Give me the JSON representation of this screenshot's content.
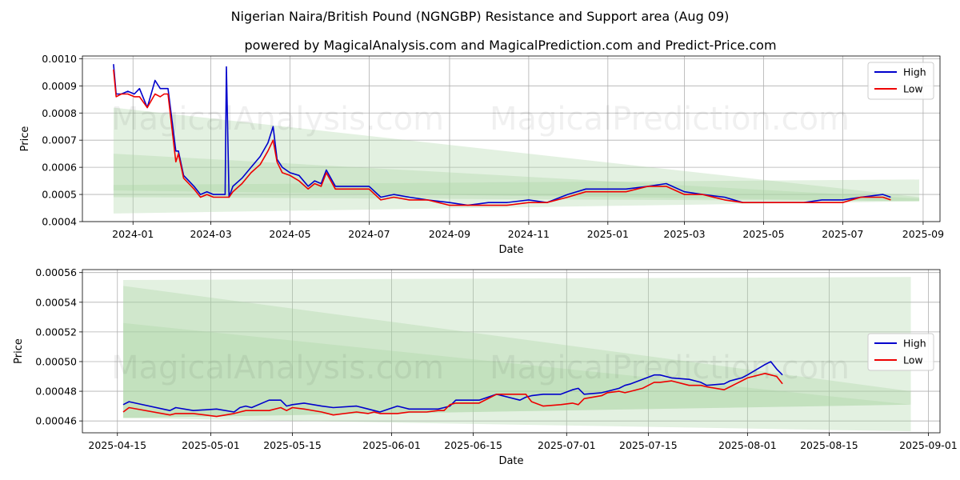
{
  "title": "Nigerian Naira/British Pound (NGNGBP) Resistance and Support area (Aug 09)",
  "subtitle": "powered by MagicalAnalysis.com and MagicalPrediction.com and Predict-Price.com",
  "watermarks": [
    "MagicalAnalysis.com",
    "MagicalPrediction.com"
  ],
  "colors": {
    "high": "#0000cc",
    "low": "#ee0000",
    "band_fill": "#a8d5a2",
    "grid": "#b0b0b0"
  },
  "chart_data": [
    {
      "type": "line",
      "xlabel": "Date",
      "ylabel": "Price",
      "xlim": [
        "2023-11-23",
        "2025-09-14"
      ],
      "ylim": [
        0.0004,
        0.00101
      ],
      "yticks": [
        0.0004,
        0.0005,
        0.0006,
        0.0007,
        0.0008,
        0.0009,
        0.001
      ],
      "ytick_labels": [
        "0.0004",
        "0.0005",
        "0.0006",
        "0.0007",
        "0.0008",
        "0.0009",
        "0.0010"
      ],
      "xticks": [
        "2024-01-01",
        "2024-03-01",
        "2024-05-01",
        "2024-07-01",
        "2024-09-01",
        "2024-11-01",
        "2025-01-01",
        "2025-03-01",
        "2025-05-01",
        "2025-07-01",
        "2025-09-01"
      ],
      "xtick_labels": [
        "2024-01",
        "2024-03",
        "2024-05",
        "2024-07",
        "2024-09",
        "2024-11",
        "2025-01",
        "2025-03",
        "2025-05",
        "2025-07",
        "2025-09"
      ],
      "grid": true,
      "legend": "top-right",
      "bands": [
        {
          "x": [
            "2023-12-17",
            "2025-08-29"
          ],
          "upper": [
            0.00082,
            0.00049
          ],
          "lower": [
            0.00043,
            0.000475
          ]
        },
        {
          "x": [
            "2023-12-17",
            "2025-08-29"
          ],
          "upper": [
            0.00065,
            0.000485
          ],
          "lower": [
            0.00049,
            0.000475
          ]
        },
        {
          "x": [
            "2023-12-17",
            "2025-08-29"
          ],
          "upper": [
            0.000535,
            0.000555
          ],
          "lower": [
            0.000515,
            0.000475
          ]
        }
      ],
      "series": [
        {
          "name": "High",
          "x": [
            "2023-12-17",
            "2023-12-19",
            "2023-12-23",
            "2023-12-28",
            "2024-01-02",
            "2024-01-06",
            "2024-01-12",
            "2024-01-18",
            "2024-01-22",
            "2024-01-25",
            "2024-01-28",
            "2024-02-03",
            "2024-02-05",
            "2024-02-09",
            "2024-02-13",
            "2024-02-17",
            "2024-02-22",
            "2024-02-27",
            "2024-03-03",
            "2024-03-08",
            "2024-03-12",
            "2024-03-13",
            "2024-03-15",
            "2024-03-18",
            "2024-03-25",
            "2024-04-01",
            "2024-04-08",
            "2024-04-14",
            "2024-04-18",
            "2024-04-21",
            "2024-04-25",
            "2024-05-01",
            "2024-05-08",
            "2024-05-15",
            "2024-05-20",
            "2024-05-25",
            "2024-05-29",
            "2024-06-05",
            "2024-06-15",
            "2024-06-25",
            "2024-07-01",
            "2024-07-10",
            "2024-07-20",
            "2024-08-01",
            "2024-08-15",
            "2024-09-01",
            "2024-09-15",
            "2024-10-01",
            "2024-10-15",
            "2024-11-01",
            "2024-11-15",
            "2024-12-01",
            "2024-12-15",
            "2025-01-01",
            "2025-01-15",
            "2025-02-01",
            "2025-02-15",
            "2025-03-01",
            "2025-03-15",
            "2025-04-01",
            "2025-04-15",
            "2025-05-01",
            "2025-05-15",
            "2025-06-01",
            "2025-06-15",
            "2025-07-01",
            "2025-07-15",
            "2025-08-01",
            "2025-08-07"
          ],
          "values": [
            0.00098,
            0.00087,
            0.00087,
            0.00088,
            0.00087,
            0.00089,
            0.00082,
            0.00092,
            0.00089,
            0.00089,
            0.00089,
            0.00066,
            0.00066,
            0.00057,
            0.00055,
            0.00053,
            0.0005,
            0.00051,
            0.0005,
            0.0005,
            0.0005,
            0.00097,
            0.00049,
            0.00053,
            0.00056,
            0.0006,
            0.00064,
            0.00069,
            0.00075,
            0.00063,
            0.0006,
            0.00058,
            0.00057,
            0.00053,
            0.00055,
            0.00054,
            0.00059,
            0.00053,
            0.00053,
            0.00053,
            0.00053,
            0.00049,
            0.0005,
            0.00049,
            0.00048,
            0.00047,
            0.00046,
            0.00047,
            0.00047,
            0.00048,
            0.00047,
            0.0005,
            0.00052,
            0.00052,
            0.00052,
            0.00053,
            0.00054,
            0.00051,
            0.0005,
            0.00049,
            0.00047,
            0.00047,
            0.00047,
            0.00047,
            0.00048,
            0.00048,
            0.00049,
            0.0005,
            0.00049
          ]
        },
        {
          "name": "Low",
          "x": [
            "2023-12-17",
            "2023-12-19",
            "2023-12-23",
            "2023-12-28",
            "2024-01-02",
            "2024-01-06",
            "2024-01-12",
            "2024-01-18",
            "2024-01-22",
            "2024-01-25",
            "2024-01-28",
            "2024-02-03",
            "2024-02-05",
            "2024-02-09",
            "2024-02-13",
            "2024-02-17",
            "2024-02-22",
            "2024-02-27",
            "2024-03-03",
            "2024-03-08",
            "2024-03-12",
            "2024-03-13",
            "2024-03-15",
            "2024-03-18",
            "2024-03-25",
            "2024-04-01",
            "2024-04-08",
            "2024-04-14",
            "2024-04-18",
            "2024-04-21",
            "2024-04-25",
            "2024-05-01",
            "2024-05-08",
            "2024-05-15",
            "2024-05-20",
            "2024-05-25",
            "2024-05-29",
            "2024-06-05",
            "2024-06-15",
            "2024-06-25",
            "2024-07-01",
            "2024-07-10",
            "2024-07-20",
            "2024-08-01",
            "2024-08-15",
            "2024-09-01",
            "2024-09-15",
            "2024-10-01",
            "2024-10-15",
            "2024-11-01",
            "2024-11-15",
            "2024-12-01",
            "2024-12-15",
            "2025-01-01",
            "2025-01-15",
            "2025-02-01",
            "2025-02-15",
            "2025-03-01",
            "2025-03-15",
            "2025-04-01",
            "2025-04-15",
            "2025-05-01",
            "2025-05-15",
            "2025-06-01",
            "2025-06-15",
            "2025-07-01",
            "2025-07-15",
            "2025-08-01",
            "2025-08-07"
          ],
          "values": [
            0.00096,
            0.00086,
            0.00087,
            0.00087,
            0.00086,
            0.00086,
            0.00082,
            0.00087,
            0.00086,
            0.00087,
            0.00087,
            0.00062,
            0.00065,
            0.00056,
            0.00054,
            0.00052,
            0.00049,
            0.0005,
            0.00049,
            0.00049,
            0.00049,
            0.00049,
            0.00049,
            0.00051,
            0.00054,
            0.00058,
            0.00061,
            0.00066,
            0.0007,
            0.00062,
            0.00058,
            0.00057,
            0.00055,
            0.00052,
            0.00054,
            0.00053,
            0.00058,
            0.00052,
            0.00052,
            0.00052,
            0.00052,
            0.00048,
            0.00049,
            0.00048,
            0.00048,
            0.00046,
            0.00046,
            0.00046,
            0.00046,
            0.00047,
            0.00047,
            0.00049,
            0.00051,
            0.00051,
            0.00051,
            0.00053,
            0.00053,
            0.0005,
            0.0005,
            0.00048,
            0.00047,
            0.00047,
            0.00047,
            0.00047,
            0.00047,
            0.00047,
            0.00049,
            0.00049,
            0.00048
          ]
        }
      ]
    },
    {
      "type": "line",
      "xlabel": "Date",
      "ylabel": "Price",
      "xlim": [
        "2025-04-09",
        "2025-09-03"
      ],
      "ylim": [
        0.000452,
        0.000562
      ],
      "yticks": [
        0.00046,
        0.00048,
        0.0005,
        0.00052,
        0.00054,
        0.00056
      ],
      "ytick_labels": [
        "0.00046",
        "0.00048",
        "0.00050",
        "0.00052",
        "0.00054",
        "0.00056"
      ],
      "xticks": [
        "2025-04-15",
        "2025-05-01",
        "2025-05-15",
        "2025-06-01",
        "2025-06-15",
        "2025-07-01",
        "2025-07-15",
        "2025-08-01",
        "2025-08-15",
        "2025-09-01"
      ],
      "xtick_labels": [
        "2025-04-15",
        "2025-05-01",
        "2025-05-15",
        "2025-06-01",
        "2025-06-15",
        "2025-07-01",
        "2025-07-15",
        "2025-08-01",
        "2025-08-15",
        "2025-09-01"
      ],
      "grid": true,
      "legend": "center-right",
      "bands": [
        {
          "x": [
            "2025-04-16",
            "2025-08-29"
          ],
          "upper": [
            0.000555,
            0.000557
          ],
          "lower": [
            0.000462,
            0.000471
          ]
        },
        {
          "x": [
            "2025-04-16",
            "2025-08-29"
          ],
          "upper": [
            0.000551,
            0.00048
          ],
          "lower": [
            0.000462,
            0.000471
          ]
        },
        {
          "x": [
            "2025-04-16",
            "2025-08-29"
          ],
          "upper": [
            0.000526,
            0.000471
          ],
          "lower": [
            0.000462,
            0.000453
          ]
        }
      ],
      "series": [
        {
          "name": "High",
          "x": [
            "2025-04-16",
            "2025-04-17",
            "2025-04-24",
            "2025-04-25",
            "2025-04-28",
            "2025-05-02",
            "2025-05-05",
            "2025-05-06",
            "2025-05-07",
            "2025-05-08",
            "2025-05-11",
            "2025-05-13",
            "2025-05-14",
            "2025-05-15",
            "2025-05-17",
            "2025-05-20",
            "2025-05-22",
            "2025-05-26",
            "2025-05-28",
            "2025-05-29",
            "2025-05-30",
            "2025-06-02",
            "2025-06-04",
            "2025-06-05",
            "2025-06-07",
            "2025-06-09",
            "2025-06-10",
            "2025-06-11",
            "2025-06-12",
            "2025-06-13",
            "2025-06-16",
            "2025-06-19",
            "2025-06-23",
            "2025-06-24",
            "2025-06-25",
            "2025-06-27",
            "2025-06-30",
            "2025-07-02",
            "2025-07-03",
            "2025-07-04",
            "2025-07-07",
            "2025-07-08",
            "2025-07-10",
            "2025-07-11",
            "2025-07-12",
            "2025-07-14",
            "2025-07-16",
            "2025-07-17",
            "2025-07-19",
            "2025-07-22",
            "2025-07-24",
            "2025-07-25",
            "2025-07-28",
            "2025-07-29",
            "2025-07-30",
            "2025-07-31",
            "2025-08-01",
            "2025-08-04",
            "2025-08-05",
            "2025-08-06",
            "2025-08-07"
          ],
          "values": [
            0.000471,
            0.000473,
            0.000467,
            0.000469,
            0.000467,
            0.000468,
            0.000466,
            0.000469,
            0.00047,
            0.000469,
            0.000474,
            0.000474,
            0.00047,
            0.000471,
            0.000472,
            0.00047,
            0.000469,
            0.00047,
            0.000468,
            0.000467,
            0.000466,
            0.00047,
            0.000468,
            0.000468,
            0.000468,
            0.000468,
            0.000469,
            0.00047,
            0.000474,
            0.000474,
            0.000474,
            0.000478,
            0.000474,
            0.000476,
            0.000477,
            0.000478,
            0.000478,
            0.000481,
            0.000482,
            0.000478,
            0.000479,
            0.00048,
            0.000482,
            0.000484,
            0.000485,
            0.000488,
            0.000491,
            0.000491,
            0.000489,
            0.000488,
            0.000486,
            0.000484,
            0.000485,
            0.000487,
            0.000488,
            0.000489,
            0.000491,
            0.000498,
            0.0005,
            0.000495,
            0.000491
          ]
        },
        {
          "name": "Low",
          "x": [
            "2025-04-16",
            "2025-04-17",
            "2025-04-24",
            "2025-04-25",
            "2025-04-28",
            "2025-05-02",
            "2025-05-05",
            "2025-05-06",
            "2025-05-07",
            "2025-05-08",
            "2025-05-11",
            "2025-05-13",
            "2025-05-14",
            "2025-05-15",
            "2025-05-17",
            "2025-05-20",
            "2025-05-22",
            "2025-05-26",
            "2025-05-28",
            "2025-05-29",
            "2025-05-30",
            "2025-06-02",
            "2025-06-04",
            "2025-06-05",
            "2025-06-07",
            "2025-06-09",
            "2025-06-10",
            "2025-06-11",
            "2025-06-12",
            "2025-06-13",
            "2025-06-16",
            "2025-06-19",
            "2025-06-23",
            "2025-06-24",
            "2025-06-25",
            "2025-06-27",
            "2025-06-30",
            "2025-07-02",
            "2025-07-03",
            "2025-07-04",
            "2025-07-07",
            "2025-07-08",
            "2025-07-10",
            "2025-07-11",
            "2025-07-12",
            "2025-07-14",
            "2025-07-16",
            "2025-07-17",
            "2025-07-19",
            "2025-07-22",
            "2025-07-24",
            "2025-07-25",
            "2025-07-28",
            "2025-07-29",
            "2025-07-30",
            "2025-07-31",
            "2025-08-01",
            "2025-08-04",
            "2025-08-05",
            "2025-08-06",
            "2025-08-07"
          ],
          "values": [
            0.000466,
            0.000469,
            0.000464,
            0.000465,
            0.000465,
            0.000463,
            0.000465,
            0.000466,
            0.000467,
            0.000467,
            0.000467,
            0.000469,
            0.000467,
            0.000469,
            0.000468,
            0.000466,
            0.000464,
            0.000466,
            0.000465,
            0.000466,
            0.000465,
            0.000465,
            0.000466,
            0.000466,
            0.000466,
            0.000467,
            0.000467,
            0.000471,
            0.000472,
            0.000472,
            0.000472,
            0.000478,
            0.000478,
            0.000478,
            0.000473,
            0.00047,
            0.000471,
            0.000472,
            0.000471,
            0.000475,
            0.000477,
            0.000479,
            0.00048,
            0.000479,
            0.00048,
            0.000482,
            0.000486,
            0.000486,
            0.000487,
            0.000484,
            0.000484,
            0.000483,
            0.000481,
            0.000483,
            0.000485,
            0.000487,
            0.000489,
            0.000492,
            0.000491,
            0.00049,
            0.000485
          ]
        }
      ]
    }
  ]
}
